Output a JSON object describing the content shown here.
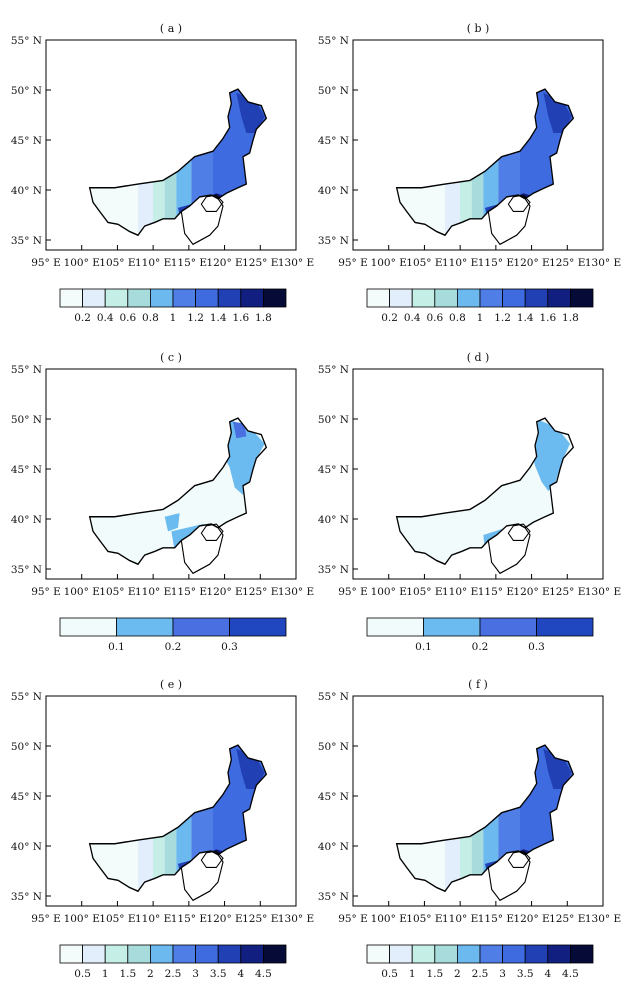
{
  "panels": [
    {
      "label": "( a )"
    },
    {
      "label": "( b )"
    },
    {
      "label": "( c )"
    },
    {
      "label": "( d )"
    },
    {
      "label": "( e )"
    },
    {
      "label": "( f )"
    }
  ],
  "axes": {
    "lat_ticks": [
      {
        "value": 35,
        "label": "35° N"
      },
      {
        "value": 40,
        "label": "40° N"
      },
      {
        "value": 45,
        "label": "45° N"
      },
      {
        "value": 50,
        "label": "50° N"
      },
      {
        "value": 55,
        "label": "55° N"
      }
    ],
    "lon_ticks": [
      {
        "value": 95,
        "label": "95° E"
      },
      {
        "value": 100,
        "label": "100° E"
      },
      {
        "value": 105,
        "label": "105° E"
      },
      {
        "value": 110,
        "label": "110° E"
      },
      {
        "value": 115,
        "label": "115° E"
      },
      {
        "value": 120,
        "label": "120° E"
      },
      {
        "value": 125,
        "label": "125° E"
      },
      {
        "value": 130,
        "label": "130° E"
      }
    ],
    "lon_range": [
      95,
      130
    ],
    "lat_range": [
      34,
      55
    ]
  },
  "colorbars": [
    {
      "colors": [
        "#f3fbfb",
        "#e2eefb",
        "#c4eee6",
        "#a8dcdc",
        "#6bb9ef",
        "#4f7fe6",
        "#3f6be0",
        "#2140b4",
        "#111f80",
        "#050a36"
      ],
      "ticks": [
        "0.2",
        "0.4",
        "0.6",
        "0.8",
        "1",
        "1.2",
        "1.4",
        "1.6",
        "1.8"
      ]
    },
    {
      "colors": [
        "#f1fbfb",
        "#6bbbf0",
        "#4a6fe0",
        "#2047c0"
      ],
      "ticks": [
        "0.1",
        "0.2",
        "0.3"
      ]
    },
    {
      "colors": [
        "#f3fbfb",
        "#e2eefb",
        "#c4eee6",
        "#a8dcdc",
        "#6bb9ef",
        "#4f7fe6",
        "#3f6be0",
        "#2140b4",
        "#111f80",
        "#050a36"
      ],
      "ticks": [
        "0.5",
        "1",
        "1.5",
        "2",
        "2.5",
        "3",
        "3.5",
        "4",
        "4.5"
      ]
    }
  ],
  "colors": {
    "outline": "#000000",
    "frame": "#000000"
  }
}
